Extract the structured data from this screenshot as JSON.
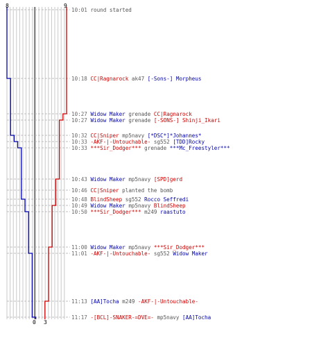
{
  "colors": {
    "red_team": "#cc0000",
    "blue_team": "#0000aa",
    "grid": "#c8c8c8",
    "center_line": "#555555",
    "time": "#666666",
    "weapon": "#555555"
  },
  "scores": {
    "blue_start": "8",
    "red_start": "9",
    "blue_end": "0",
    "red_end": "3"
  },
  "events": [
    {
      "time": "10:01",
      "message": "round started"
    },
    {
      "time": "10:18",
      "killer": "CC|Ragnarock",
      "killer_team": "red",
      "weapon": "ak47",
      "victim": "[-Sons-] Morpheus",
      "victim_team": "blue"
    },
    {
      "time": "10:27",
      "killer": "Widow Maker",
      "killer_team": "blue",
      "weapon": "grenade",
      "victim": "CC|Ragnarock",
      "victim_team": "red"
    },
    {
      "time": "10:27",
      "killer": "Widow Maker",
      "killer_team": "blue",
      "weapon": "grenade",
      "victim": "[-SONS-] Shinji_Ikari",
      "victim_team": "red"
    },
    {
      "time": "10:32",
      "killer": "CC|Sniper",
      "killer_team": "red",
      "weapon": "mp5navy",
      "victim": "[*DSC*]*Johannes*",
      "victim_team": "blue"
    },
    {
      "time": "10:33",
      "killer": "-AKF-|-Untouchable-",
      "killer_team": "red",
      "weapon": "sg552",
      "victim": "[TDD]Rocky",
      "victim_team": "blue"
    },
    {
      "time": "10:33",
      "killer": "***Sir_Dodger***",
      "killer_team": "red",
      "weapon": "grenade",
      "victim": "***Mc_Freestyler***",
      "victim_team": "blue"
    },
    {
      "time": "10:43",
      "killer": "Widow Maker",
      "killer_team": "blue",
      "weapon": "mp5navy",
      "victim": "[SPD]gerd",
      "victim_team": "red"
    },
    {
      "time": "10:46",
      "killer": "CC|Sniper",
      "killer_team": "red",
      "weapon": "",
      "victim": "",
      "victim_team": "",
      "message": "planted the bomb"
    },
    {
      "time": "10:48",
      "killer": "BlindSheep",
      "killer_team": "red",
      "weapon": "sg552",
      "victim": "Rocco Seffredi",
      "victim_team": "blue"
    },
    {
      "time": "10:49",
      "killer": "Widow Maker",
      "killer_team": "blue",
      "weapon": "mp5navy",
      "victim": "BlindSheep",
      "victim_team": "red"
    },
    {
      "time": "10:50",
      "killer": "***Sir_Dodger***",
      "killer_team": "red",
      "weapon": "m249",
      "victim": "raastuto",
      "victim_team": "blue"
    },
    {
      "time": "11:00",
      "killer": "Widow Maker",
      "killer_team": "blue",
      "weapon": "mp5navy",
      "victim": "***Sir_Dodger***",
      "victim_team": "red"
    },
    {
      "time": "11:01",
      "killer": "-AKF-|-Untouchable-",
      "killer_team": "red",
      "weapon": "sg552",
      "victim": "Widow Maker",
      "victim_team": "blue"
    },
    {
      "time": "11:13",
      "killer": "[AA]Tocha",
      "killer_team": "blue",
      "weapon": "m249",
      "victim": "-AKF-|-Untouchable-",
      "victim_team": "red"
    },
    {
      "time": "11:17",
      "killer": "-[BCL]-SNAKER-=DVE=-",
      "killer_team": "red",
      "weapon": "mp5navy",
      "victim": "[AA]Tocha",
      "victim_team": "blue"
    }
  ]
}
